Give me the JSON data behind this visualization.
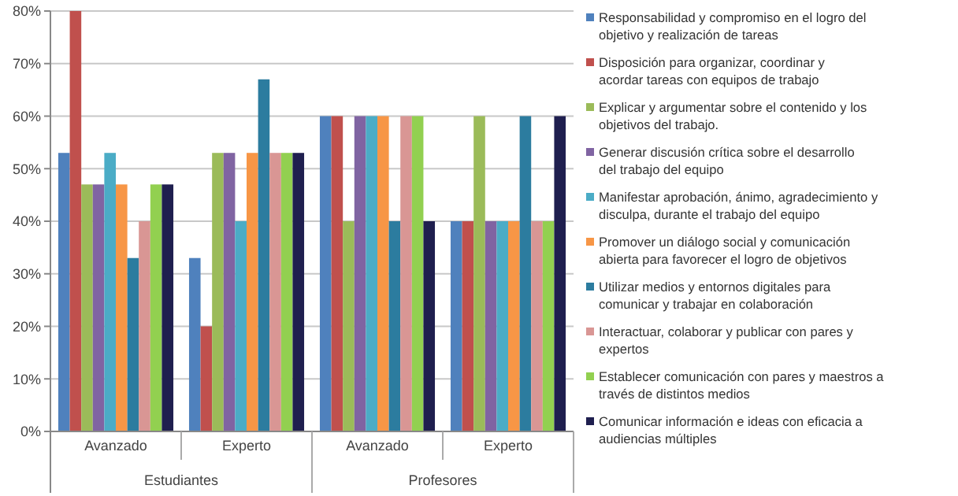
{
  "chart_data": {
    "type": "bar",
    "categories": [
      "Avanzado",
      "Experto",
      "Avanzado",
      "Experto"
    ],
    "annotations": [
      "Estudiantes",
      "Profesores"
    ],
    "series": [
      {
        "name": "Responsabilidad y compromiso en el logro del objetivo y realización de tareas",
        "color": "#4f81bd",
        "values": [
          53,
          33,
          60,
          40
        ]
      },
      {
        "name": "Disposición para organizar, coordinar y acordar tareas con equipos de trabajo",
        "color": "#c0504d",
        "values": [
          80,
          20,
          60,
          40
        ]
      },
      {
        "name": "Explicar y argumentar sobre el contenido y los objetivos del trabajo.",
        "color": "#9bbb59",
        "values": [
          47,
          53,
          40,
          60
        ]
      },
      {
        "name": "Generar  discusión crítica sobre el desarrollo del trabajo del equipo",
        "color": "#8064a2",
        "values": [
          47,
          53,
          60,
          40
        ]
      },
      {
        "name": "Manifestar aprobación, ánimo, agradecimiento y disculpa, durante el trabajo del equipo",
        "color": "#4bacc6",
        "values": [
          53,
          40,
          60,
          40
        ]
      },
      {
        "name": "Promover un diálogo social y comunicación abierta para favorecer el logro de objetivos",
        "color": "#f79646",
        "values": [
          47,
          53,
          60,
          40
        ]
      },
      {
        "name": "Utilizar medios y entornos digitales para comunicar y trabajar en colaboración",
        "color": "#2c7c9f",
        "values": [
          33,
          67,
          40,
          60
        ]
      },
      {
        "name": "Interactuar, colaborar y publicar con pares y expertos",
        "color": "#d99694",
        "values": [
          40,
          53,
          60,
          40
        ]
      },
      {
        "name": "Establecer comunicación con pares y maestros a través de distintos medios",
        "color": "#92d050",
        "values": [
          47,
          53,
          60,
          40
        ]
      },
      {
        "name": "Comunicar información e ideas con eficacia a audiencias múltiples",
        "color": "#1f1f4f",
        "values": [
          47,
          53,
          40,
          60
        ]
      }
    ],
    "ylim": [
      0,
      80
    ],
    "yticks": [
      {
        "value": 0,
        "label": "0%"
      },
      {
        "value": 10,
        "label": "10%"
      },
      {
        "value": 20,
        "label": "20%"
      },
      {
        "value": 30,
        "label": "30%"
      },
      {
        "value": 40,
        "label": "40%"
      },
      {
        "value": 50,
        "label": "50%"
      },
      {
        "value": 60,
        "label": "60%"
      },
      {
        "value": 70,
        "label": "70%"
      },
      {
        "value": 80,
        "label": "80%"
      }
    ],
    "grid": "y",
    "legend": "right"
  }
}
